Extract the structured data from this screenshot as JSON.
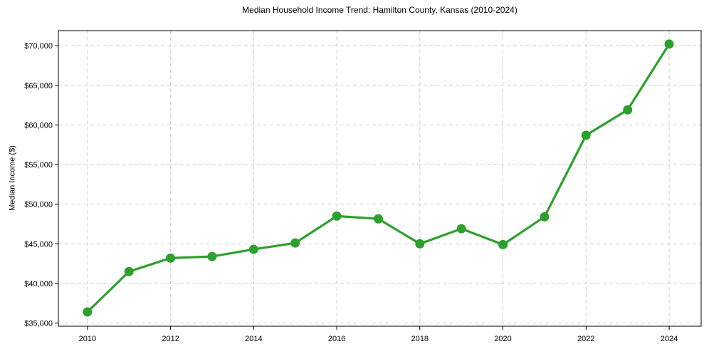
{
  "title": "Median Household Income Trend: Hamilton County, Kansas (2010-2024)",
  "y_axis_label": "Median Income ($)",
  "chart_data": {
    "type": "line",
    "title": "Median Household Income Trend: Hamilton County, Kansas (2010-2024)",
    "xlabel": "",
    "ylabel": "Median Income ($)",
    "x": [
      2010,
      2011,
      2012,
      2013,
      2014,
      2015,
      2016,
      2017,
      2018,
      2019,
      2020,
      2021,
      2022,
      2023,
      2024
    ],
    "series": [
      {
        "name": "Median Household Income",
        "values": [
          36400,
          41500,
          43200,
          43400,
          44300,
          45100,
          48500,
          48150,
          45000,
          46900,
          44900,
          48400,
          58700,
          61900,
          70200
        ]
      }
    ],
    "x_ticks": [
      2010,
      2012,
      2014,
      2016,
      2018,
      2020,
      2022,
      2024
    ],
    "x_tick_labels": [
      "2010",
      "2012",
      "2014",
      "2016",
      "2018",
      "2020",
      "2022",
      "2024"
    ],
    "y_ticks": [
      35000,
      40000,
      45000,
      50000,
      55000,
      60000,
      65000,
      70000
    ],
    "y_tick_labels": [
      "$35,000",
      "$40,000",
      "$45,000",
      "$50,000",
      "$55,000",
      "$60,000",
      "$65,000",
      "$70,000"
    ],
    "xlim": [
      2009.3,
      2024.77
    ],
    "ylim": [
      34600,
      71900
    ],
    "grid": true,
    "grid_style": "dashed",
    "legend": null,
    "line_color": "#2ca02c",
    "marker": "o",
    "marker_size": 6.5,
    "line_width": 3.2,
    "grid_color": "#cfcfcf",
    "spine_color": "#000000",
    "background_color": "#ffffff"
  }
}
